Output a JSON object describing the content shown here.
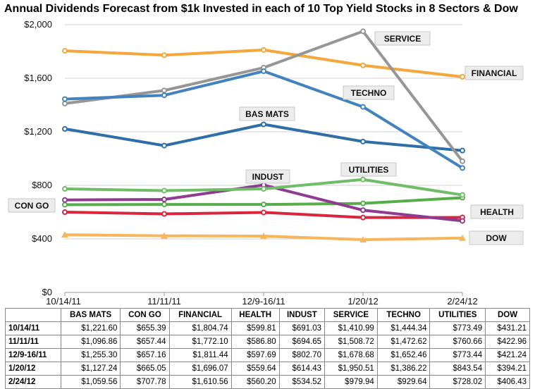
{
  "chart_data": {
    "type": "line",
    "title": "Annual Dividends Forecast from $1k Invested in each of 10 Top Yield Stocks in 8 Sectors & Dow",
    "categories": [
      "10/14/11",
      "11/11/11",
      "12/9-16/11",
      "1/20/12",
      "2/24/12"
    ],
    "y_ticks": [
      "$2,000",
      "$1,600",
      "$1,200",
      "$800",
      "$400",
      "$0"
    ],
    "ylim": [
      0,
      2000
    ],
    "grid": true,
    "legend": "labels beside lines",
    "series": [
      {
        "name": "BAS MATS",
        "color": "#2f6ea6",
        "values": [
          1221.6,
          1096.86,
          1255.3,
          1127.24,
          1059.56
        ]
      },
      {
        "name": "CON GO",
        "color": "#56ad4a",
        "values": [
          655.39,
          657.44,
          657.16,
          665.05,
          707.78
        ]
      },
      {
        "name": "FINANCIAL",
        "color": "#f3a73d",
        "values": [
          1804.74,
          1772.1,
          1811.44,
          1696.07,
          1610.56
        ]
      },
      {
        "name": "HEALTH",
        "color": "#d8263f",
        "values": [
          599.81,
          586.8,
          597.69,
          559.64,
          560.2
        ]
      },
      {
        "name": "INDUST",
        "color": "#8e3c92",
        "values": [
          691.03,
          694.65,
          802.7,
          614.43,
          534.52
        ]
      },
      {
        "name": "SERVICE",
        "color": "#969696",
        "values": [
          1410.99,
          1508.72,
          1678.68,
          1950.51,
          979.94
        ]
      },
      {
        "name": "TECHNO",
        "color": "#4282bd",
        "values": [
          1444.34,
          1472.62,
          1652.46,
          1386.22,
          929.64
        ]
      },
      {
        "name": "UTILITIES",
        "color": "#6fbd67",
        "values": [
          773.49,
          760.66,
          773.44,
          843.54,
          728.02
        ]
      },
      {
        "name": "DOW",
        "color": "#f5b65c",
        "values": [
          431.21,
          422.96,
          421.24,
          394.21,
          406.43
        ]
      }
    ]
  },
  "table": {
    "headers": [
      "",
      "BAS MATS",
      "CON GO",
      "FINANCIAL",
      "HEALTH",
      "INDUST",
      "SERVICE",
      "TECHNO",
      "UTILITIES",
      "DOW"
    ],
    "rows": [
      [
        "10/14/11",
        "$1,221.60",
        "$655.39",
        "$1,804.74",
        "$599.81",
        "$691.03",
        "$1,410.99",
        "$1,444.34",
        "$773.49",
        "$431.21"
      ],
      [
        "11/11/11",
        "$1,096.86",
        "$657.44",
        "$1,772.10",
        "$586.80",
        "$694.65",
        "$1,508.72",
        "$1,472.62",
        "$760.66",
        "$422.96"
      ],
      [
        "12/9-16/11",
        "$1,255.30",
        "$657.16",
        "$1,811.44",
        "$597.69",
        "$802.70",
        "$1,678.68",
        "$1,652.46",
        "$773.44",
        "$421.24"
      ],
      [
        "1/20/12",
        "$1,127.24",
        "$665.05",
        "$1,696.07",
        "$559.64",
        "$614.43",
        "$1,950.51",
        "$1,386.22",
        "$843.54",
        "$394.21"
      ],
      [
        "2/24/12",
        "$1,059.56",
        "$707.78",
        "$1,610.56",
        "$560.20",
        "$534.52",
        "$979.94",
        "$929.64",
        "$728.02",
        "$406.43"
      ]
    ]
  }
}
